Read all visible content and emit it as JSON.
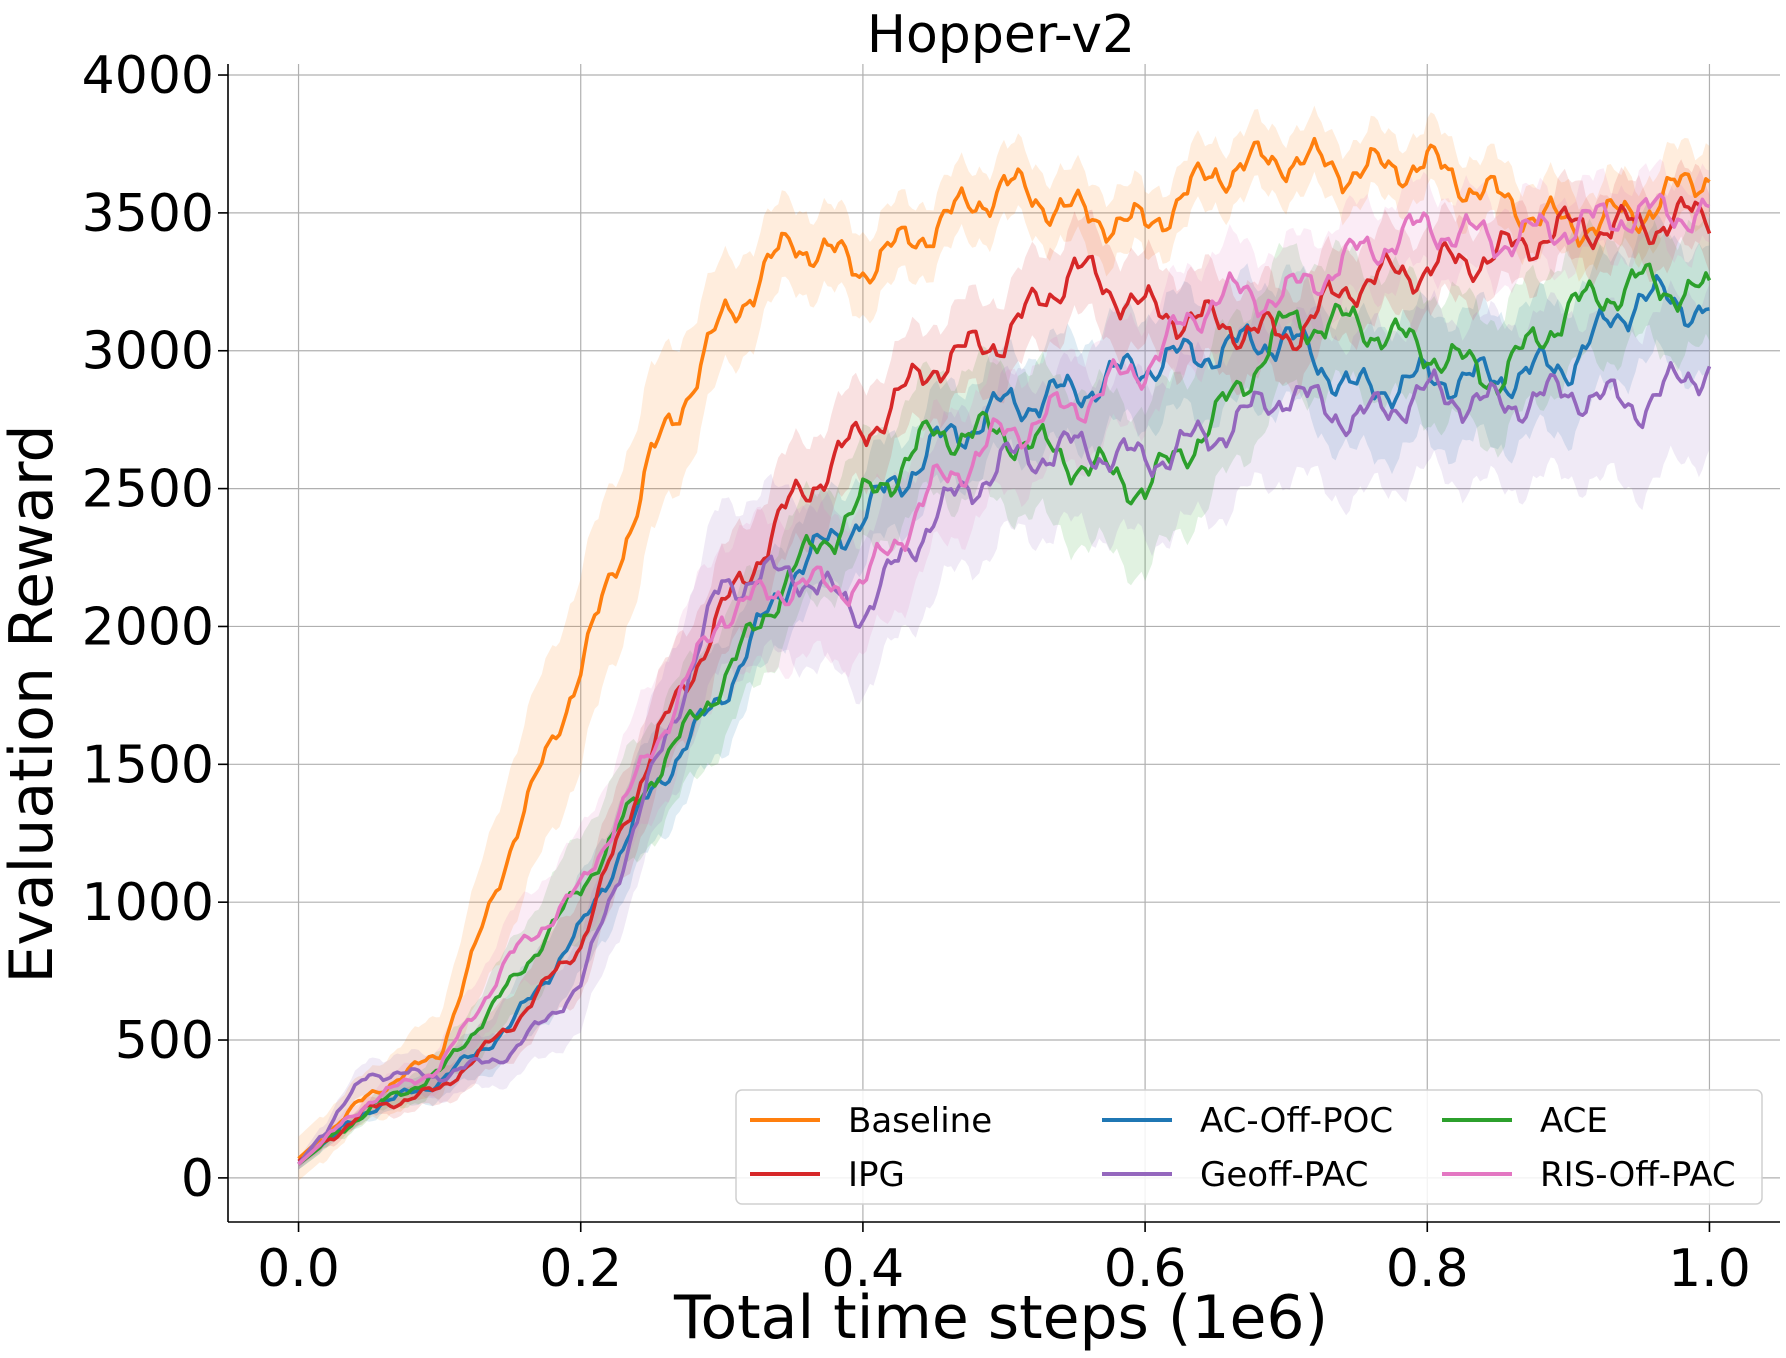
{
  "chart_data": {
    "type": "line",
    "title": "Hopper-v2",
    "xlabel": "Total time steps (1e6)",
    "ylabel": "Evaluation Reward",
    "xlim": [
      -0.05,
      1.05
    ],
    "ylim": [
      -160,
      4040
    ],
    "xticks": [
      "0.0",
      "0.2",
      "0.4",
      "0.6",
      "0.8",
      "1.0"
    ],
    "xtick_values": [
      0.0,
      0.2,
      0.4,
      0.6,
      0.8,
      1.0
    ],
    "yticks": [
      "0",
      "500",
      "1000",
      "1500",
      "2000",
      "2500",
      "3000",
      "3500",
      "4000"
    ],
    "ytick_values": [
      0,
      500,
      1000,
      1500,
      2000,
      2500,
      3000,
      3500,
      4000
    ],
    "grid": true,
    "legend_position": "bottom-right",
    "legend_columns": 3,
    "shaded_band": "variance around each series",
    "x": [
      0.0,
      0.05,
      0.1,
      0.15,
      0.2,
      0.25,
      0.3,
      0.35,
      0.4,
      0.45,
      0.5,
      0.55,
      0.6,
      0.65,
      0.7,
      0.75,
      0.8,
      0.85,
      0.9,
      0.95,
      1.0
    ],
    "series": [
      {
        "name": "Baseline",
        "color": "#ff7f0e",
        "values": [
          70,
          300,
          450,
          1200,
          1850,
          2600,
          3100,
          3400,
          3300,
          3450,
          3600,
          3500,
          3450,
          3650,
          3700,
          3650,
          3680,
          3550,
          3450,
          3500,
          3650
        ],
        "band": [
          80,
          90,
          150,
          300,
          350,
          300,
          200,
          150,
          150,
          130,
          130,
          130,
          120,
          120,
          120,
          120,
          120,
          120,
          130,
          130,
          130
        ]
      },
      {
        "name": "AC-Off-POC",
        "color": "#1f77b4",
        "values": [
          50,
          250,
          350,
          550,
          900,
          1400,
          1750,
          2200,
          2400,
          2650,
          2800,
          2850,
          2950,
          3000,
          3050,
          2850,
          2900,
          2900,
          2950,
          3200,
          3150
        ],
        "band": [
          20,
          30,
          60,
          120,
          180,
          200,
          200,
          180,
          170,
          170,
          180,
          190,
          200,
          220,
          230,
          240,
          240,
          240,
          240,
          230,
          230
        ]
      },
      {
        "name": "ACE",
        "color": "#2ca02c",
        "values": [
          50,
          250,
          380,
          700,
          1050,
          1450,
          1800,
          2200,
          2450,
          2700,
          2700,
          2600,
          2500,
          2750,
          3100,
          3100,
          3000,
          2900,
          3150,
          3250,
          3200
        ],
        "band": [
          20,
          30,
          70,
          140,
          200,
          220,
          220,
          200,
          200,
          220,
          250,
          280,
          300,
          270,
          250,
          230,
          230,
          230,
          230,
          220,
          220
        ]
      },
      {
        "name": "IPG",
        "color": "#d62728",
        "values": [
          60,
          250,
          320,
          550,
          850,
          1550,
          2050,
          2450,
          2700,
          2950,
          3050,
          3300,
          3150,
          3100,
          3050,
          3250,
          3300,
          3350,
          3450,
          3450,
          3500
        ],
        "band": [
          20,
          30,
          60,
          120,
          180,
          200,
          200,
          190,
          180,
          170,
          170,
          170,
          170,
          170,
          170,
          160,
          150,
          140,
          140,
          140,
          140
        ]
      },
      {
        "name": "Geoff-PAC",
        "color": "#9467bd",
        "values": [
          50,
          380,
          370,
          450,
          700,
          1450,
          2150,
          2200,
          2050,
          2400,
          2600,
          2650,
          2600,
          2700,
          2850,
          2750,
          2850,
          2800,
          2850,
          2800,
          2950
        ],
        "band": [
          20,
          60,
          80,
          100,
          170,
          250,
          300,
          300,
          280,
          280,
          280,
          290,
          290,
          290,
          290,
          290,
          290,
          300,
          300,
          300,
          300
        ]
      },
      {
        "name": "RIS-Off-PAC",
        "color": "#e377c2",
        "values": [
          50,
          280,
          400,
          800,
          1050,
          1550,
          2050,
          2150,
          2150,
          2500,
          2700,
          2800,
          2950,
          3200,
          3200,
          3350,
          3450,
          3400,
          3450,
          3500,
          3500
        ],
        "band": [
          20,
          40,
          80,
          150,
          200,
          250,
          270,
          270,
          260,
          240,
          220,
          200,
          190,
          180,
          170,
          160,
          150,
          140,
          130,
          130,
          130
        ]
      }
    ]
  }
}
